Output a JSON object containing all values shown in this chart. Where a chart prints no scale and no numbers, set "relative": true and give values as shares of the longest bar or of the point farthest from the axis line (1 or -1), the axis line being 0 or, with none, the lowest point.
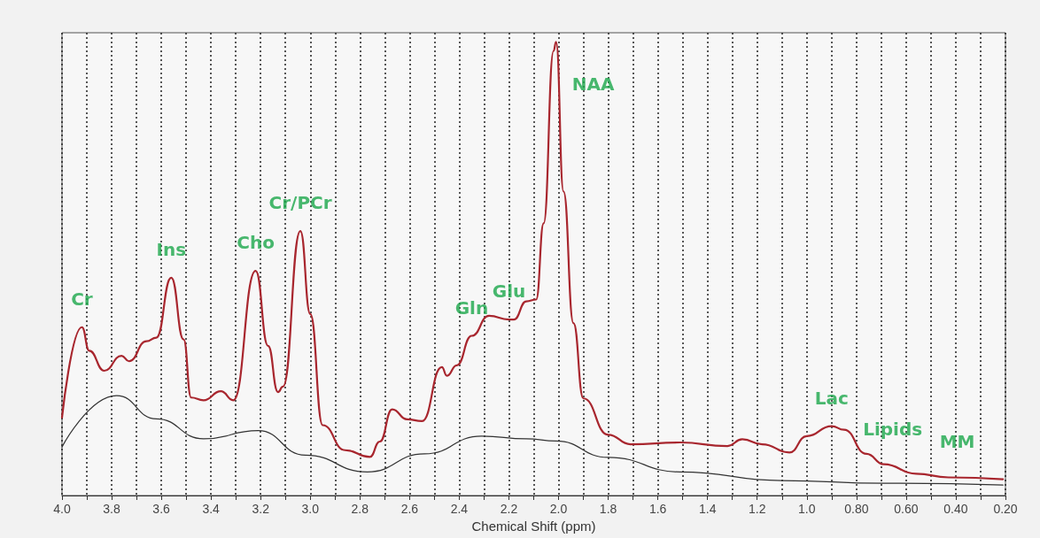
{
  "chart_data": {
    "type": "line",
    "relative": true,
    "xlabel": "Chemical Shift (ppm)",
    "xlim": [
      4.0,
      0.2
    ],
    "xticks": [
      {
        "value": 4.0,
        "label": "4.0"
      },
      {
        "value": 3.9,
        "label": null
      },
      3.8,
      {
        "value": 3.7,
        "label": null
      },
      3.6,
      {
        "value": 3.5,
        "label": null
      },
      3.4,
      {
        "value": 3.3,
        "label": null
      },
      3.2,
      {
        "value": 3.1,
        "label": null
      },
      {
        "value": 3.0,
        "label": "3.0"
      },
      {
        "value": 2.9,
        "label": null
      },
      2.8,
      {
        "value": 2.7,
        "label": null
      },
      2.6,
      {
        "value": 2.5,
        "label": null
      },
      2.4,
      {
        "value": 2.3,
        "label": null
      },
      2.2,
      {
        "value": 2.1,
        "label": null
      },
      {
        "value": 2.0,
        "label": "2.0"
      },
      {
        "value": 1.9,
        "label": null
      },
      1.8,
      {
        "value": 1.7,
        "label": null
      },
      1.6,
      {
        "value": 1.5,
        "label": null
      },
      1.4,
      {
        "value": 1.3,
        "label": null
      },
      1.2,
      {
        "value": 1.1,
        "label": null
      },
      {
        "value": 1.0,
        "label": "1.0"
      },
      {
        "value": 0.9,
        "label": null
      },
      {
        "value": 0.8,
        "label": "0.80"
      },
      {
        "value": 0.7,
        "label": null
      },
      {
        "value": 0.6,
        "label": "0.60"
      },
      {
        "value": 0.5,
        "label": null
      },
      {
        "value": 0.4,
        "label": "0.40"
      },
      {
        "value": 0.3,
        "label": null
      },
      {
        "value": 0.2,
        "label": "0.20"
      }
    ],
    "grid": "x",
    "marker": "none",
    "line_style": "solid",
    "series": [
      {
        "color": "#a8262e",
        "x": [
          4.0,
          3.92,
          3.89,
          3.83,
          3.76,
          3.73,
          3.66,
          3.62,
          3.56,
          3.51,
          3.48,
          3.43,
          3.36,
          3.31,
          3.22,
          3.17,
          3.13,
          3.11,
          3.04,
          3.0,
          2.95,
          2.86,
          2.76,
          2.72,
          2.67,
          2.61,
          2.55,
          2.47,
          2.45,
          2.41,
          2.35,
          2.28,
          2.2,
          2.18,
          2.13,
          2.09,
          2.06,
          2.02,
          2.01,
          1.98,
          1.94,
          1.9,
          1.8,
          1.71,
          1.51,
          1.32,
          1.26,
          1.18,
          1.07,
          1.0,
          0.9,
          0.85,
          0.76,
          0.69,
          0.56,
          0.43,
          0.21
        ],
        "values": [
          0.172,
          0.371,
          0.319,
          0.275,
          0.308,
          0.296,
          0.34,
          0.348,
          0.48,
          0.344,
          0.216,
          0.21,
          0.23,
          0.21,
          0.495,
          0.33,
          0.228,
          0.24,
          0.583,
          0.4,
          0.155,
          0.1,
          0.085,
          0.119,
          0.19,
          0.168,
          0.164,
          0.283,
          0.264,
          0.287,
          0.352,
          0.396,
          0.388,
          0.388,
          0.428,
          0.432,
          0.6,
          0.98,
          1,
          0.67,
          0.38,
          0.214,
          0.134,
          0.113,
          0.117,
          0.109,
          0.124,
          0.113,
          0.095,
          0.131,
          0.153,
          0.145,
          0.092,
          0.069,
          0.048,
          0.04,
          0.036
        ]
      },
      {
        "color": "#333333",
        "x": [
          4.0,
          3.78,
          3.62,
          3.43,
          3.21,
          3.02,
          2.77,
          2.54,
          2.31,
          2.13,
          2.01,
          1.8,
          1.51,
          1.1,
          0.69,
          0.21
        ],
        "values": [
          0.107,
          0.22,
          0.169,
          0.125,
          0.143,
          0.089,
          0.052,
          0.092,
          0.131,
          0.125,
          0.12,
          0.084,
          0.052,
          0.033,
          0.027,
          0.023
        ]
      }
    ],
    "annotations": [
      {
        "text": "Cr",
        "x": 3.92,
        "y": 0.371
      },
      {
        "text": "Ins",
        "x": 3.56,
        "y": 0.48
      },
      {
        "text": "Cho",
        "x": 3.22,
        "y": 0.495
      },
      {
        "text": "Cr/PCr",
        "x": 3.04,
        "y": 0.583
      },
      {
        "text": "Gln",
        "x": 2.35,
        "y": 0.352
      },
      {
        "text": "Glu",
        "x": 2.2,
        "y": 0.388
      },
      {
        "text": "NAA",
        "x": 2.01,
        "y": 1
      },
      {
        "text": "Lac",
        "x": 0.9,
        "y": 0.153
      },
      {
        "text": "Lipids",
        "x": 0.69,
        "y": 0.069
      },
      {
        "text": "MM",
        "x": 0.43,
        "y": 0.04
      }
    ]
  }
}
